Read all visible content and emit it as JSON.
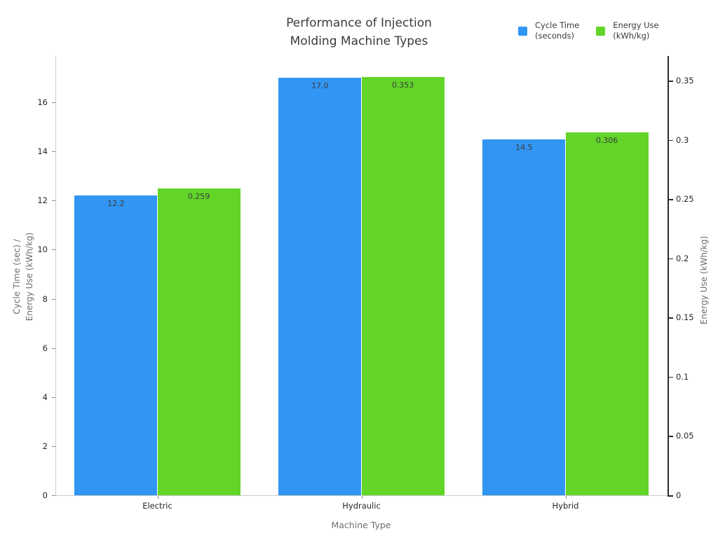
{
  "title_lines": [
    "Performance of Injection",
    "Molding Machine Types"
  ],
  "legend": {
    "items": [
      {
        "lines": [
          "Cycle Time",
          "(seconds)"
        ],
        "color": "#3196f3"
      },
      {
        "lines": [
          "Energy Use",
          "(kWh/kg)"
        ],
        "color": "#62d528"
      }
    ],
    "position": "top-right"
  },
  "chart_data": {
    "type": "bar",
    "title": "Performance of Injection Molding Machine Types",
    "xlabel": "Machine Type",
    "ylabel_left_lines": [
      "Cycle Time (sec) /",
      "Energy Use (kWh/kg)"
    ],
    "ylabel_right": "Energy Use (kWh/kg)",
    "categories": [
      "Electric",
      "Hydraulic",
      "Hybrid"
    ],
    "series": [
      {
        "id": "cycle-time",
        "name": "Cycle Time (seconds)",
        "axis": "left",
        "color": "#3196f3",
        "values": [
          12.2,
          17.0,
          14.5
        ],
        "value_labels": [
          "12.2",
          "17.0",
          "14.5"
        ]
      },
      {
        "id": "energy-use",
        "name": "Energy Use (kWh/kg)",
        "axis": "right",
        "color": "#62d528",
        "values": [
          0.259,
          0.353,
          0.306
        ],
        "value_labels": [
          "0.259",
          "0.353",
          "0.306"
        ]
      }
    ],
    "left_ticks": [
      0,
      2,
      4,
      6,
      8,
      10,
      12,
      14,
      16
    ],
    "left_tick_labels": [
      "0",
      "2",
      "4",
      "6",
      "8",
      "10",
      "12",
      "14",
      "16"
    ],
    "left_axis_max": 17.885,
    "right_ticks": [
      0,
      0.05,
      0.1,
      0.15,
      0.2,
      0.25,
      0.3,
      0.35
    ],
    "right_tick_labels": [
      "0",
      "0.05",
      "0.1",
      "0.15",
      "0.2",
      "0.25",
      "0.3",
      "0.35"
    ],
    "right_axis_max": 0.3707,
    "grid": false,
    "legend_position": "top-right"
  }
}
